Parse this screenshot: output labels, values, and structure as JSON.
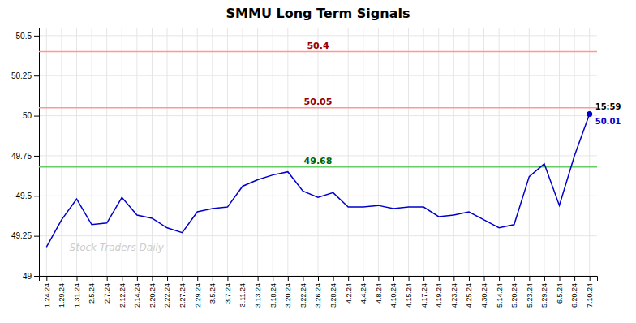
{
  "chart_data": {
    "type": "line",
    "title": "SMMU Long Term Signals",
    "categories": [
      "1.24.24",
      "1.29.24",
      "1.31.24",
      "2.5.24",
      "2.7.24",
      "2.12.24",
      "2.14.24",
      "2.20.24",
      "2.22.24",
      "2.27.24",
      "2.29.24",
      "3.5.24",
      "3.7.24",
      "3.11.24",
      "3.13.24",
      "3.18.24",
      "3.20.24",
      "3.22.24",
      "3.26.24",
      "3.28.24",
      "4.2.24",
      "4.4.24",
      "4.8.24",
      "4.10.24",
      "4.15.24",
      "4.17.24",
      "4.19.24",
      "4.23.24",
      "4.25.24",
      "4.30.24",
      "5.14.24",
      "5.20.24",
      "5.23.24",
      "5.29.24",
      "6.5.24",
      "6.20.24",
      "7.10.24"
    ],
    "series": [
      {
        "color": "#0000CC",
        "values": [
          49.18,
          49.35,
          49.48,
          49.32,
          49.33,
          49.49,
          49.38,
          49.36,
          49.3,
          49.27,
          49.4,
          49.42,
          49.43,
          49.56,
          49.6,
          49.63,
          49.65,
          49.53,
          49.49,
          49.52,
          49.43,
          49.43,
          49.44,
          49.42,
          49.43,
          49.43,
          49.37,
          49.38,
          49.4,
          49.35,
          49.3,
          49.32,
          49.62,
          49.7,
          49.44,
          49.75,
          50.01
        ]
      }
    ],
    "hlines": [
      {
        "value": 50.4,
        "label": "50.4",
        "color": "#FF9999",
        "label_color": "#990000"
      },
      {
        "value": 50.05,
        "label": "50.05",
        "color": "#FF9999",
        "label_color": "#990000"
      },
      {
        "value": 49.68,
        "label": "49.68",
        "color": "#66CC66",
        "label_color": "#006600"
      }
    ],
    "last_point": {
      "time": "15:59",
      "price_label": "50.01",
      "value": 50.01,
      "color": "#0000CC"
    },
    "watermark": "Stock Traders Daily",
    "ylim": [
      49.0,
      50.55
    ],
    "yticks": [
      49.0,
      49.25,
      49.5,
      49.75,
      50.0,
      50.25,
      50.5
    ],
    "grid": true
  }
}
